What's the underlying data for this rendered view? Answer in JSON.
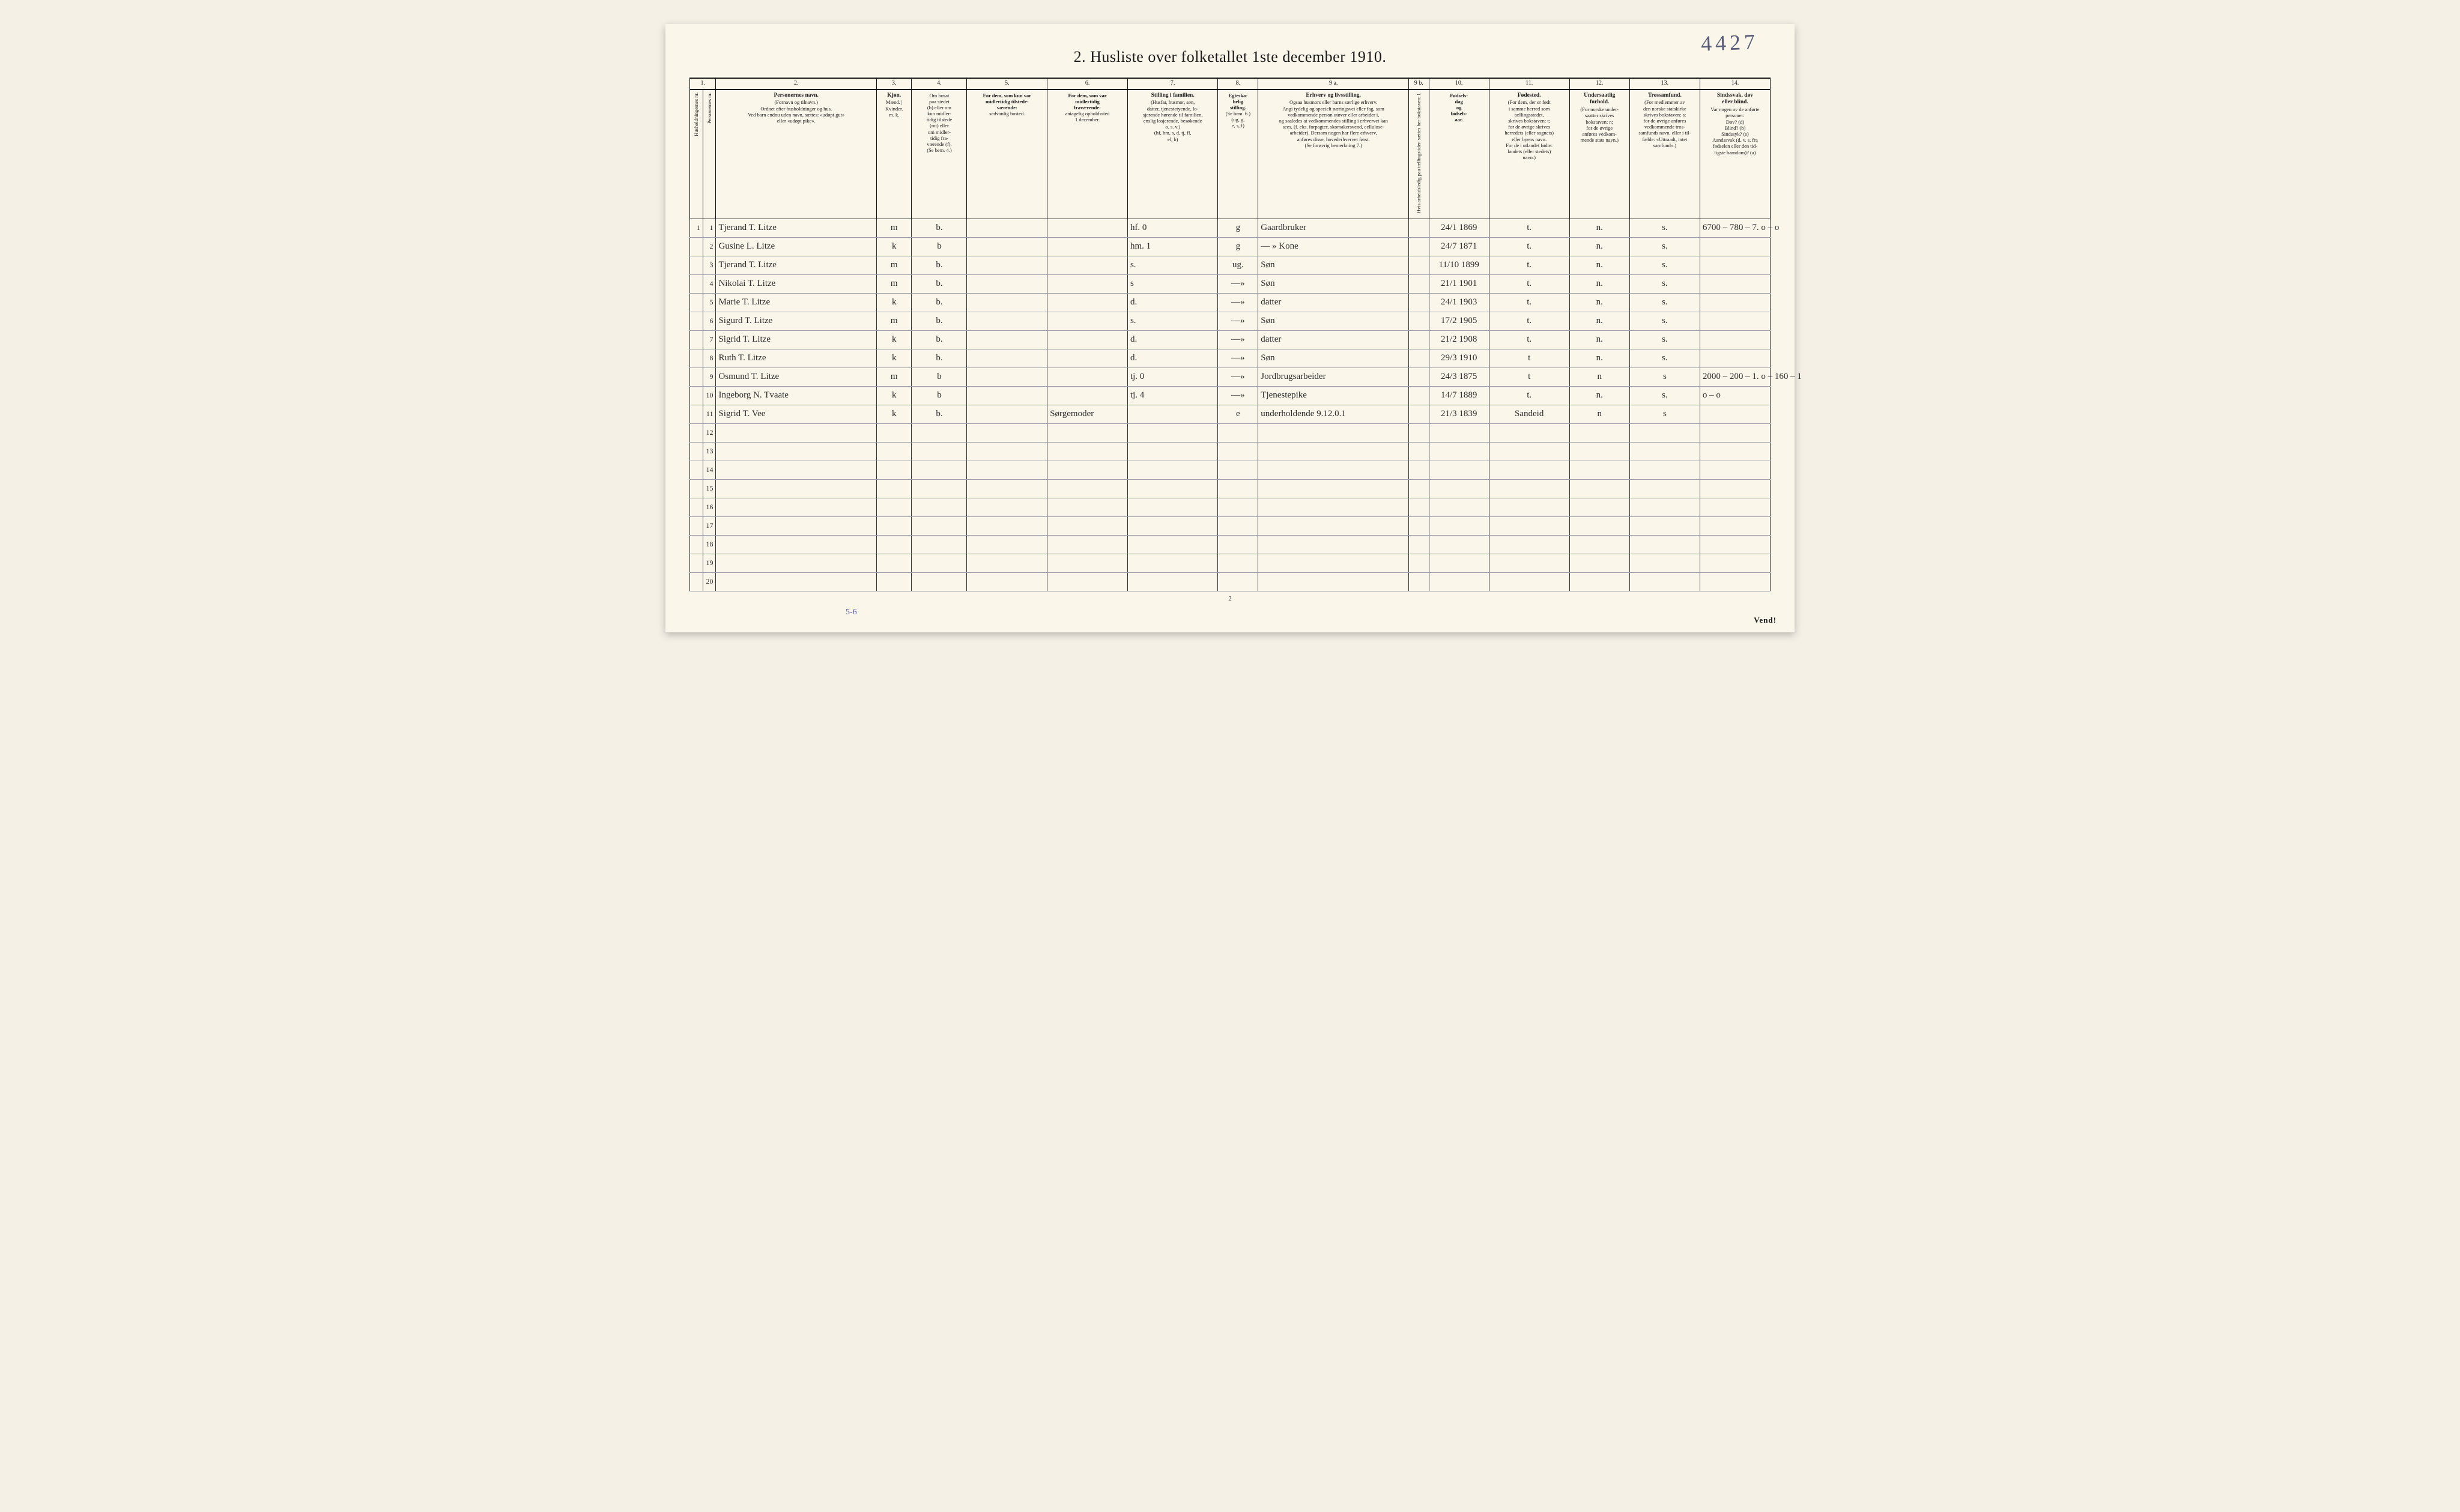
{
  "title": "2.  Husliste over folketallet 1ste december 1910.",
  "topright_handwriting": "4427",
  "page_number": "2",
  "vend": "Vend!",
  "bottom_annotation": "5-6",
  "columns": {
    "nums": [
      "1.",
      "2.",
      "3.",
      "4.",
      "5.",
      "6.",
      "7.",
      "8.",
      "9 a.",
      "9 b.",
      "10.",
      "11.",
      "12.",
      "13.",
      "14."
    ],
    "h1": "Husholdningernes nr.",
    "h1b": "Personernes nr.",
    "h2_title": "Personernes navn.",
    "h2_sub": "(Fornavn og tilnavn.)\nOrdnet efter husholdninger og hus.\nVed barn endnu uden navn, sættes: «udøpt gut»\neller «udøpt pike».",
    "h3_title": "Kjøn.",
    "h3_sub": "Mænd. | Kvinder.\nm.  k.",
    "h4_title": "Om bosat\npaa stedet\n(b) eller om\nkun midler-\ntidig tilstede\n(mt) eller\nom midler-\ntidig fra-\nværende (f).\n(Se bem. 4.)",
    "h5_title": "For dem, som kun var\nmidlertidig tilstede-\nværende:",
    "h5_sub": "sedvanlig bosted.",
    "h6_title": "For dem, som var\nmidlertidig\nfraværende:",
    "h6_sub": "antagelig opholdssted\n1 december.",
    "h7_title": "Stilling i familien.",
    "h7_sub": "(Husfar, husmor, søn,\ndatter, tjenestetyende, lo-\nsjerende hørende til familien,\nenslig losjerende, besøkende\no. s. v.)\n(hf, hm, s, d, tj, fl,\nel, b)",
    "h8_title": "Egteska-\nbelig\nstilling.",
    "h8_sub": "(Se bem. 6.)\n(ug, g,\ne, s, f)",
    "h9a_title": "Erhverv og livsstilling.",
    "h9a_sub": "Ogsaa husmors eller barns særlige erhverv.\nAngi tydelig og specielt næringsvei eller fag, som\nvedkommende person utøver eller arbeider i,\nog saaledes at vedkommendes stilling i erhvervet kan\nsees, (f. eks. forpagter, skomakersvend, cellulose-\narbeider). Dersom nogen har flere erhverv,\nanføres disse, hovederhvervet først.\n(Se forøvrig bemerkning 7.)",
    "h9b_title": "Hvis arbeidsledig\npaa tællingstiden sættes\nher bokstaven: l.",
    "h10_title": "Fødsels-\ndag\nog\nfødsels-\naar.",
    "h11_title": "Fødested.",
    "h11_sub": "(For dem, der er født\ni samme herred som\ntællingsstedet,\nskrives bokstaven: t;\nfor de øvrige skrives\nherredets (eller sognets)\neller byens navn.\nFor de i utlandet fødte:\nlandets (eller stedets)\nnavn.)",
    "h12_title": "Undersaatlig\nforhold.",
    "h12_sub": "(For norske under-\nsaatter skrives\nbokstaven: n;\nfor de øvrige\nanføres vedkom-\nmende stats navn.)",
    "h13_title": "Trossamfund.",
    "h13_sub": "(For medlemmer av\nden norske statskirke\nskrives bokstaven: s;\nfor de øvrige anføres\nvedkommende tros-\nsamfunds navn, eller i til-\nfælde: «Uttraadt, intet\nsamfund».)",
    "h14_title": "Sindssvak, døv\neller blind.",
    "h14_sub": "Var nogen av de anførte\npersoner:\nDøv?        (d)\nBlind?      (b)\nSindssyk?  (s)\nAandssvak (d. v. s. fra\nfødselen eller den tid-\nligste barndom)? (a)"
  },
  "rows": [
    {
      "hh": "1",
      "pn": "1",
      "name": "Tjerand T. Litze",
      "sex": "m",
      "res": "b.",
      "c5": "",
      "c6": "",
      "fam": "hf.     0",
      "mar": "g",
      "occ": "Gaardbruker",
      "c9b": "",
      "birth": "24/1 1869",
      "bp": "t.",
      "nat": "n.",
      "rel": "s.",
      "c14": "6700 – 780 – 7.   o – o"
    },
    {
      "hh": "",
      "pn": "2",
      "name": "Gusine L. Litze",
      "sex": "k",
      "res": "b",
      "c5": "",
      "c6": "",
      "fam": "hm.     1",
      "mar": "g",
      "occ": "— »  Kone",
      "c9b": "",
      "birth": "24/7 1871",
      "bp": "t.",
      "nat": "n.",
      "rel": "s.",
      "c14": ""
    },
    {
      "hh": "",
      "pn": "3",
      "name": "Tjerand T. Litze",
      "sex": "m",
      "res": "b.",
      "c5": "",
      "c6": "",
      "fam": "s.",
      "mar": "ug.",
      "occ": "Søn",
      "c9b": "",
      "birth": "11/10 1899",
      "bp": "t.",
      "nat": "n.",
      "rel": "s.",
      "c14": ""
    },
    {
      "hh": "",
      "pn": "4",
      "name": "Nikolai T. Litze",
      "sex": "m",
      "res": "b.",
      "c5": "",
      "c6": "",
      "fam": "s",
      "mar": "—»",
      "occ": "Søn",
      "c9b": "",
      "birth": "21/1 1901",
      "bp": "t.",
      "nat": "n.",
      "rel": "s.",
      "c14": ""
    },
    {
      "hh": "",
      "pn": "5",
      "name": "Marie T. Litze",
      "sex": "k",
      "res": "b.",
      "c5": "",
      "c6": "",
      "fam": "d.",
      "mar": "—»",
      "occ": "datter",
      "c9b": "",
      "birth": "24/1 1903",
      "bp": "t.",
      "nat": "n.",
      "rel": "s.",
      "c14": ""
    },
    {
      "hh": "",
      "pn": "6",
      "name": "Sigurd T. Litze",
      "sex": "m",
      "res": "b.",
      "c5": "",
      "c6": "",
      "fam": "s.",
      "mar": "—»",
      "occ": "Søn",
      "c9b": "",
      "birth": "17/2 1905",
      "bp": "t.",
      "nat": "n.",
      "rel": "s.",
      "c14": ""
    },
    {
      "hh": "",
      "pn": "7",
      "name": "Sigrid T. Litze",
      "sex": "k",
      "res": "b.",
      "c5": "",
      "c6": "",
      "fam": "d.",
      "mar": "—»",
      "occ": "datter",
      "c9b": "",
      "birth": "21/2 1908",
      "bp": "t.",
      "nat": "n.",
      "rel": "s.",
      "c14": ""
    },
    {
      "hh": "",
      "pn": "8",
      "name": "Ruth T. Litze",
      "sex": "k",
      "res": "b.",
      "c5": "",
      "c6": "",
      "fam": "d.",
      "mar": "—»",
      "occ": "Søn",
      "c9b": "",
      "birth": "29/3 1910",
      "bp": "t",
      "nat": "n.",
      "rel": "s.",
      "c14": ""
    },
    {
      "hh": "",
      "pn": "9",
      "name": "Osmund T. Litze",
      "sex": "m",
      "res": "b",
      "c5": "",
      "c6": "",
      "fam": "tj.    0",
      "mar": "—»",
      "occ": "Jordbrugsarbeider",
      "c9b": "",
      "birth": "24/3 1875",
      "bp": "t",
      "nat": "n",
      "rel": "s",
      "c14": "2000 – 200 – 1.   o – 160 – 1"
    },
    {
      "hh": "",
      "pn": "10",
      "name": "Ingeborg N. Tvaate",
      "sex": "k",
      "res": "b",
      "c5": "",
      "c6": "",
      "fam": "tj.    4",
      "mar": "—»",
      "occ": "Tjenestepike",
      "c9b": "",
      "birth": "14/7 1889",
      "bp": "t.",
      "nat": "n.",
      "rel": "s.",
      "c14": "o – o"
    },
    {
      "hh": "",
      "pn": "11",
      "name": "Sigrid T. Vee",
      "sex": "k",
      "res": "b.",
      "c5": "",
      "c6": "Sørgemoder",
      "fam": "",
      "mar": "e",
      "occ": "underholdende  9.12.0.1",
      "c9b": "",
      "birth": "21/3 1839",
      "bp": "Sandeid",
      "nat": "n",
      "rel": "s",
      "c14": ""
    },
    {
      "hh": "",
      "pn": "12"
    },
    {
      "hh": "",
      "pn": "13"
    },
    {
      "hh": "",
      "pn": "14"
    },
    {
      "hh": "",
      "pn": "15"
    },
    {
      "hh": "",
      "pn": "16"
    },
    {
      "hh": "",
      "pn": "17"
    },
    {
      "hh": "",
      "pn": "18"
    },
    {
      "hh": "",
      "pn": "19"
    },
    {
      "hh": "",
      "pn": "20"
    }
  ],
  "col_widths": [
    "1.3%",
    "1.3%",
    "16%",
    "3.5%",
    "5.5%",
    "8%",
    "8%",
    "9%",
    "4%",
    "15%",
    "2%",
    "6%",
    "8%",
    "6%",
    "7%",
    "7%"
  ]
}
